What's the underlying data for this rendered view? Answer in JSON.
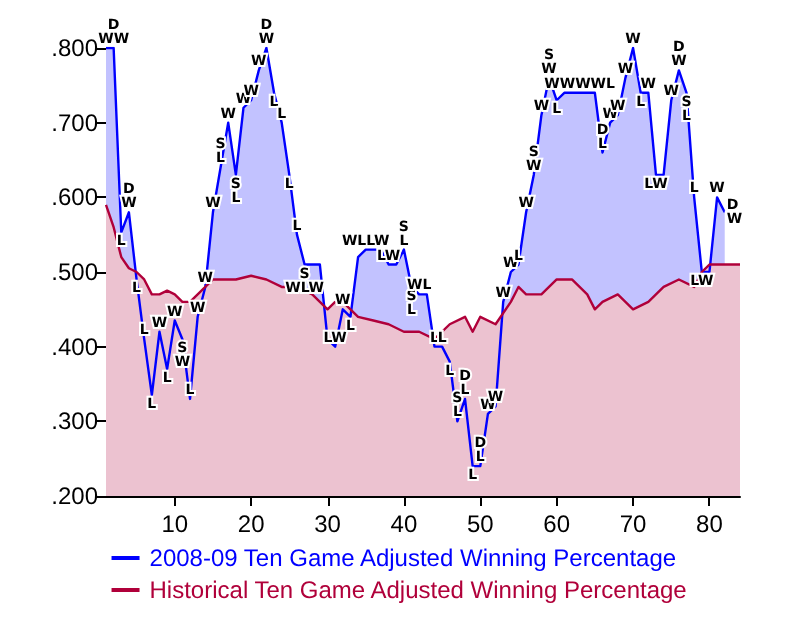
{
  "chart_data": {
    "type": "area",
    "xlim": [
      1,
      84
    ],
    "xticks": [
      10,
      20,
      30,
      40,
      50,
      60,
      70,
      80
    ],
    "ylim": [
      0.2,
      0.8
    ],
    "yticks": [
      {
        "value": 0.2,
        "label": ".200"
      },
      {
        "value": 0.3,
        "label": ".300"
      },
      {
        "value": 0.4,
        "label": ".400"
      },
      {
        "value": 0.5,
        "label": ".500"
      },
      {
        "value": 0.6,
        "label": ".600"
      },
      {
        "value": 0.7,
        "label": ".700"
      },
      {
        "value": 0.8,
        "label": ".800"
      }
    ],
    "grid": false,
    "legend": "bottom",
    "series": [
      {
        "name": "2008-09 Ten Game Adjusted Winning Percentage",
        "color": "#0000ff",
        "x": [
          1,
          2,
          3,
          4,
          5,
          6,
          7,
          8,
          9,
          10,
          11,
          12,
          13,
          14,
          15,
          16,
          17,
          18,
          19,
          20,
          21,
          22,
          23,
          24,
          25,
          26,
          27,
          28,
          29,
          30,
          31,
          32,
          33,
          34,
          35,
          36,
          37,
          38,
          39,
          40,
          41,
          42,
          43,
          44,
          45,
          46,
          47,
          48,
          49,
          50,
          51,
          52,
          53,
          54,
          55,
          56,
          57,
          58,
          59,
          60,
          61,
          62,
          63,
          64,
          65,
          66,
          67,
          68,
          69,
          70,
          71,
          72,
          73,
          74,
          75,
          76,
          77,
          78,
          79,
          80,
          81,
          82
        ],
        "values": [
          0.8,
          0.8,
          0.553,
          0.58,
          0.49,
          0.41,
          0.335,
          0.42,
          0.37,
          0.435,
          0.41,
          0.33,
          0.44,
          0.48,
          0.58,
          0.64,
          0.7,
          0.63,
          0.72,
          0.73,
          0.77,
          0.8,
          0.74,
          0.7,
          0.63,
          0.55,
          0.51,
          0.51,
          0.51,
          0.41,
          0.4,
          0.45,
          0.44,
          0.52,
          0.53,
          0.53,
          0.53,
          0.51,
          0.51,
          0.53,
          0.48,
          0.47,
          0.47,
          0.4,
          0.4,
          0.38,
          0.3,
          0.33,
          0.24,
          0.24,
          0.31,
          0.32,
          0.46,
          0.5,
          0.51,
          0.58,
          0.63,
          0.71,
          0.76,
          0.73,
          0.74,
          0.74,
          0.74,
          0.74,
          0.74,
          0.66,
          0.7,
          0.71,
          0.76,
          0.8,
          0.74,
          0.74,
          0.63,
          0.63,
          0.73,
          0.77,
          0.74,
          0.6,
          0.5,
          0.5,
          0.6,
          0.58
        ],
        "value_labels": [
          null,
          "D\nWW",
          "L",
          "D\nW",
          "L",
          "L",
          "L",
          "W",
          "L",
          "W",
          "S\nW",
          "L",
          "W",
          "W",
          "W",
          "S\nL",
          "W",
          "S\nL",
          "W",
          "W",
          "W",
          "D\nW",
          "L",
          "L",
          "L",
          "L",
          "S\nWLW",
          null,
          null,
          null,
          "LW",
          "W",
          "L",
          null,
          "WLLW",
          null,
          null,
          "LW",
          null,
          "S\nL",
          "S\nL",
          "WL",
          null,
          "L",
          "L",
          "L",
          "S\nL",
          "D\nL",
          "L",
          "D\nL",
          "W",
          "W",
          "W",
          "W",
          "L",
          "W",
          "S\nW",
          "W",
          "S\nW",
          "L",
          null,
          null,
          "WWWWL",
          null,
          null,
          "D\nL",
          "W",
          "W",
          "W",
          "W",
          "L",
          "W",
          "LW",
          null,
          "W",
          "D\nW",
          "S\nL",
          "L",
          "LW",
          null,
          "W",
          "D\nW"
        ]
      },
      {
        "name": "Historical Ten Game Adjusted Winning Percentage",
        "color": "#b0003a",
        "x": [
          1,
          2,
          3,
          4,
          5,
          6,
          7,
          8,
          9,
          10,
          11,
          12,
          13,
          14,
          15,
          16,
          18,
          20,
          22,
          24,
          26,
          28,
          30,
          31,
          32,
          34,
          36,
          38,
          40,
          42,
          44,
          46,
          48,
          49,
          50,
          52,
          54,
          55,
          56,
          58,
          60,
          62,
          64,
          65,
          66,
          68,
          70,
          72,
          74,
          76,
          78,
          79,
          80,
          82,
          84
        ],
        "values": [
          0.59,
          0.56,
          0.52,
          0.505,
          0.5,
          0.49,
          0.47,
          0.47,
          0.475,
          0.47,
          0.46,
          0.46,
          0.47,
          0.48,
          0.49,
          0.49,
          0.49,
          0.495,
          0.49,
          0.48,
          0.48,
          0.47,
          0.45,
          0.46,
          0.46,
          0.44,
          0.435,
          0.43,
          0.42,
          0.42,
          0.41,
          0.43,
          0.44,
          0.42,
          0.44,
          0.43,
          0.46,
          0.48,
          0.47,
          0.47,
          0.49,
          0.49,
          0.47,
          0.45,
          0.46,
          0.47,
          0.45,
          0.46,
          0.48,
          0.49,
          0.48,
          0.5,
          0.51,
          0.51,
          0.51
        ]
      }
    ]
  }
}
